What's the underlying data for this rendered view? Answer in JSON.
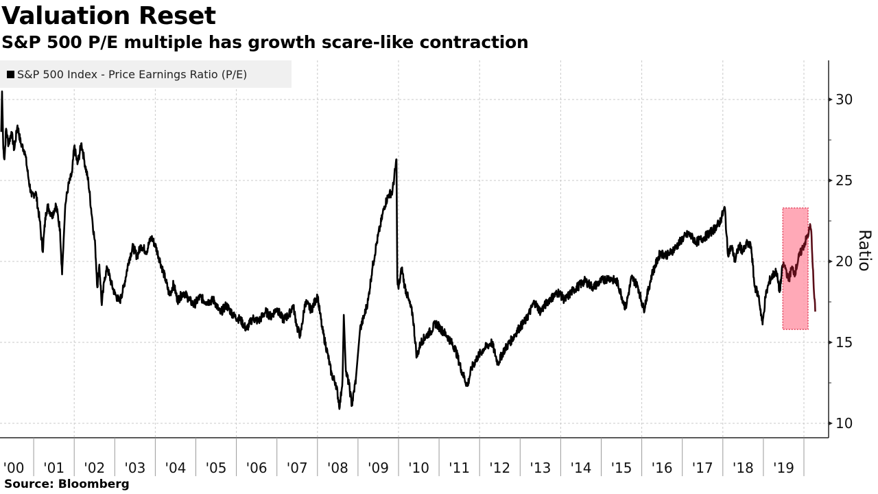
{
  "header": {
    "title": "Valuation Reset",
    "subtitle": "S&P 500 P/E multiple has growth scare-like contraction"
  },
  "legend": {
    "items": [
      {
        "label": "S&P 500 Index - Price Earnings Ratio (P/E)",
        "color": "#000000"
      }
    ]
  },
  "footer": {
    "source": "Source: Bloomberg"
  },
  "chart_data": {
    "type": "line",
    "title": "Valuation Reset",
    "subtitle": "S&P 500 P/E multiple has growth scare-like contraction",
    "xlabel": "",
    "ylabel": "Ratio",
    "ylim": [
      9,
      32.5
    ],
    "xlim": [
      2000.17,
      2020.4
    ],
    "yticks": [
      10,
      15,
      20,
      25,
      30
    ],
    "ytick_labels": [
      "10",
      "15",
      "20",
      "25",
      "30"
    ],
    "xtick_labels": [
      "'00",
      "'01",
      "'02",
      "'03",
      "'04",
      "'05",
      "'06",
      "'07",
      "'08",
      "'09",
      "'10",
      "'11",
      "'12",
      "'13",
      "'14",
      "'15",
      "'16",
      "'17",
      "'18",
      "'19"
    ],
    "xtick_years": [
      2000,
      2001,
      2002,
      2003,
      2004,
      2005,
      2006,
      2007,
      2008,
      2009,
      2010,
      2011,
      2012,
      2013,
      2014,
      2015,
      2016,
      2017,
      2018,
      2019
    ],
    "grid": true,
    "legend_position": "top-left",
    "y_axis_side": "right",
    "line_color": "#000000",
    "highlight": {
      "x_range": [
        2019.48,
        2020.4
      ],
      "y_range": [
        15.8,
        23.3
      ],
      "fill": "#ff9aaa",
      "border": "#e0405a",
      "line_color_inside": "#5a0e18"
    },
    "series": [
      {
        "name": "S&P 500 Index - Price Earnings Ratio (P/E)",
        "points": [
          [
            2000.2,
            28.0
          ],
          [
            2000.22,
            30.5
          ],
          [
            2000.25,
            27.0
          ],
          [
            2000.28,
            26.3
          ],
          [
            2000.32,
            28.2
          ],
          [
            2000.38,
            27.2
          ],
          [
            2000.45,
            28.0
          ],
          [
            2000.52,
            26.9
          ],
          [
            2000.6,
            28.4
          ],
          [
            2000.68,
            27.3
          ],
          [
            2000.78,
            26.8
          ],
          [
            2000.88,
            25.0
          ],
          [
            2000.95,
            24.0
          ],
          [
            2001.05,
            24.3
          ],
          [
            2001.15,
            22.5
          ],
          [
            2001.22,
            20.6
          ],
          [
            2001.3,
            23.0
          ],
          [
            2001.35,
            23.4
          ],
          [
            2001.45,
            22.8
          ],
          [
            2001.55,
            23.5
          ],
          [
            2001.65,
            22.0
          ],
          [
            2001.7,
            19.2
          ],
          [
            2001.78,
            23.5
          ],
          [
            2001.85,
            24.6
          ],
          [
            2001.95,
            25.5
          ],
          [
            2002.0,
            27.1
          ],
          [
            2002.08,
            26.0
          ],
          [
            2002.18,
            27.3
          ],
          [
            2002.25,
            26.2
          ],
          [
            2002.35,
            24.9
          ],
          [
            2002.45,
            22.5
          ],
          [
            2002.52,
            20.9
          ],
          [
            2002.57,
            18.4
          ],
          [
            2002.62,
            19.8
          ],
          [
            2002.68,
            17.3
          ],
          [
            2002.75,
            19.0
          ],
          [
            2002.82,
            19.6
          ],
          [
            2002.92,
            18.6
          ],
          [
            2003.0,
            18.0
          ],
          [
            2003.12,
            17.5
          ],
          [
            2003.22,
            18.4
          ],
          [
            2003.35,
            20.1
          ],
          [
            2003.45,
            20.9
          ],
          [
            2003.55,
            20.3
          ],
          [
            2003.65,
            21.0
          ],
          [
            2003.78,
            20.6
          ],
          [
            2003.9,
            21.5
          ],
          [
            2004.0,
            21.0
          ],
          [
            2004.12,
            20.0
          ],
          [
            2004.25,
            18.9
          ],
          [
            2004.35,
            17.9
          ],
          [
            2004.45,
            18.6
          ],
          [
            2004.55,
            17.6
          ],
          [
            2004.7,
            18.1
          ],
          [
            2004.85,
            17.6
          ],
          [
            2004.95,
            17.3
          ],
          [
            2005.1,
            17.8
          ],
          [
            2005.25,
            17.5
          ],
          [
            2005.45,
            17.6
          ],
          [
            2005.6,
            16.8
          ],
          [
            2005.75,
            17.3
          ],
          [
            2005.95,
            16.6
          ],
          [
            2006.1,
            16.4
          ],
          [
            2006.25,
            15.8
          ],
          [
            2006.4,
            16.5
          ],
          [
            2006.55,
            16.3
          ],
          [
            2006.72,
            16.9
          ],
          [
            2006.85,
            16.6
          ],
          [
            2007.0,
            17.1
          ],
          [
            2007.15,
            16.4
          ],
          [
            2007.3,
            16.7
          ],
          [
            2007.4,
            17.3
          ],
          [
            2007.5,
            15.9
          ],
          [
            2007.58,
            15.4
          ],
          [
            2007.7,
            17.5
          ],
          [
            2007.85,
            17.0
          ],
          [
            2008.0,
            17.9
          ],
          [
            2008.12,
            15.8
          ],
          [
            2008.25,
            14.3
          ],
          [
            2008.35,
            13.0
          ],
          [
            2008.45,
            12.5
          ],
          [
            2008.55,
            11.0
          ],
          [
            2008.62,
            12.8
          ],
          [
            2008.65,
            16.7
          ],
          [
            2008.7,
            13.2
          ],
          [
            2008.78,
            12.4
          ],
          [
            2008.85,
            11.1
          ],
          [
            2008.95,
            12.8
          ],
          [
            2009.05,
            15.8
          ],
          [
            2009.15,
            16.6
          ],
          [
            2009.25,
            17.6
          ],
          [
            2009.35,
            19.5
          ],
          [
            2009.45,
            21.0
          ],
          [
            2009.55,
            22.2
          ],
          [
            2009.65,
            23.4
          ],
          [
            2009.75,
            24.1
          ],
          [
            2009.85,
            24.3
          ],
          [
            2009.95,
            26.3
          ],
          [
            2009.97,
            19.0
          ],
          [
            2010.0,
            18.3
          ],
          [
            2010.08,
            19.6
          ],
          [
            2010.15,
            18.5
          ],
          [
            2010.25,
            17.6
          ],
          [
            2010.35,
            16.7
          ],
          [
            2010.45,
            14.1
          ],
          [
            2010.55,
            15.0
          ],
          [
            2010.68,
            15.4
          ],
          [
            2010.8,
            15.7
          ],
          [
            2010.92,
            16.2
          ],
          [
            2011.05,
            15.8
          ],
          [
            2011.2,
            15.4
          ],
          [
            2011.4,
            14.6
          ],
          [
            2011.55,
            13.3
          ],
          [
            2011.7,
            12.3
          ],
          [
            2011.8,
            13.4
          ],
          [
            2011.95,
            14.1
          ],
          [
            2012.1,
            14.6
          ],
          [
            2012.3,
            15.0
          ],
          [
            2012.45,
            13.7
          ],
          [
            2012.6,
            14.5
          ],
          [
            2012.8,
            15.2
          ],
          [
            2012.95,
            15.8
          ],
          [
            2013.15,
            16.4
          ],
          [
            2013.35,
            17.5
          ],
          [
            2013.5,
            16.9
          ],
          [
            2013.7,
            17.6
          ],
          [
            2013.95,
            18.1
          ],
          [
            2014.1,
            17.6
          ],
          [
            2014.3,
            18.2
          ],
          [
            2014.6,
            18.8
          ],
          [
            2014.8,
            18.4
          ],
          [
            2015.0,
            18.8
          ],
          [
            2015.2,
            19.0
          ],
          [
            2015.4,
            18.7
          ],
          [
            2015.6,
            17.1
          ],
          [
            2015.75,
            19.0
          ],
          [
            2015.9,
            18.5
          ],
          [
            2016.05,
            17.0
          ],
          [
            2016.25,
            19.2
          ],
          [
            2016.45,
            20.5
          ],
          [
            2016.65,
            20.4
          ],
          [
            2016.85,
            20.9
          ],
          [
            2017.0,
            21.4
          ],
          [
            2017.15,
            21.7
          ],
          [
            2017.35,
            21.2
          ],
          [
            2017.55,
            21.5
          ],
          [
            2017.75,
            21.9
          ],
          [
            2017.92,
            22.4
          ],
          [
            2018.05,
            23.3
          ],
          [
            2018.12,
            20.5
          ],
          [
            2018.22,
            20.9
          ],
          [
            2018.3,
            20.0
          ],
          [
            2018.4,
            21.0
          ],
          [
            2018.5,
            20.6
          ],
          [
            2018.6,
            21.1
          ],
          [
            2018.7,
            20.9
          ],
          [
            2018.78,
            18.5
          ],
          [
            2018.88,
            17.9
          ],
          [
            2018.98,
            16.1
          ],
          [
            2019.05,
            17.8
          ],
          [
            2019.15,
            18.8
          ],
          [
            2019.25,
            19.2
          ],
          [
            2019.32,
            19.4
          ],
          [
            2019.4,
            18.1
          ],
          [
            2019.48,
            19.8
          ],
          [
            2019.55,
            19.6
          ],
          [
            2019.62,
            18.8
          ],
          [
            2019.7,
            19.6
          ],
          [
            2019.78,
            19.3
          ],
          [
            2019.88,
            20.3
          ],
          [
            2019.98,
            20.9
          ],
          [
            2020.08,
            21.5
          ],
          [
            2020.12,
            21.8
          ],
          [
            2020.16,
            22.2
          ],
          [
            2020.19,
            21.5
          ],
          [
            2020.22,
            19.6
          ],
          [
            2020.25,
            18.0
          ],
          [
            2020.28,
            16.9
          ]
        ]
      }
    ]
  }
}
